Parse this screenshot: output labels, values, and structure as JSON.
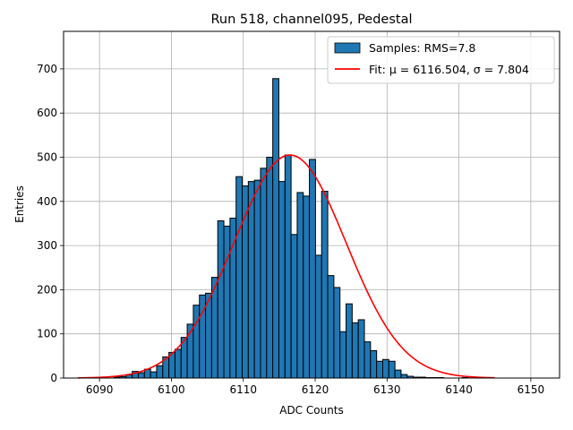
{
  "chart_data": {
    "type": "bar",
    "title": "Run 518, channel095, Pedestal",
    "xlabel": "ADC Counts",
    "ylabel": "Entries",
    "xlim": [
      6085,
      6154
    ],
    "ylim": [
      0,
      785
    ],
    "xticks": [
      6090,
      6100,
      6110,
      6120,
      6130,
      6140,
      6150
    ],
    "yticks": [
      0,
      100,
      200,
      300,
      400,
      500,
      600,
      700
    ],
    "grid": true,
    "legend_position": "top-right",
    "colors": {
      "bars": "#1f77b4",
      "bar_edge": "#000000",
      "fit": "#ff0000",
      "grid": "#b0b0b0"
    },
    "histogram": {
      "name": "Samples: RMS=7.8",
      "bin_width": 0.85,
      "bin_starts": [
        6092.0,
        6092.85,
        6093.7,
        6094.55,
        6095.4,
        6096.25,
        6097.1,
        6097.95,
        6098.8,
        6099.65,
        6100.5,
        6101.35,
        6102.2,
        6103.05,
        6103.9,
        6104.75,
        6105.6,
        6106.45,
        6107.3,
        6108.15,
        6109.0,
        6109.85,
        6110.7,
        6111.55,
        6112.4,
        6113.25,
        6114.1,
        6114.95,
        6115.8,
        6116.65,
        6117.5,
        6118.35,
        6119.2,
        6120.05,
        6120.9,
        6121.75,
        6122.6,
        6123.45,
        6124.3,
        6125.15,
        6126.0,
        6126.85,
        6127.7,
        6128.55,
        6129.4,
        6130.25,
        6131.1,
        6131.95,
        6132.8,
        6133.65,
        6134.5,
        6135.35,
        6136.2,
        6137.05,
        6137.9,
        6138.75,
        6139.6,
        6140.45
      ],
      "counts": [
        2,
        3,
        7,
        15,
        12,
        20,
        14,
        28,
        48,
        58,
        65,
        92,
        122,
        165,
        188,
        192,
        228,
        356,
        344,
        362,
        456,
        435,
        445,
        448,
        475,
        500,
        678,
        445,
        505,
        325,
        420,
        412,
        495,
        278,
        423,
        232,
        205,
        105,
        168,
        125,
        132,
        82,
        62,
        38,
        42,
        38,
        18,
        8,
        4,
        2,
        2,
        1,
        1,
        1,
        0,
        0,
        0,
        1
      ]
    },
    "fit": {
      "name": "Fit: μ = 6116.504, σ = 7.804",
      "mu": 6116.504,
      "sigma": 7.804,
      "amplitude": 505,
      "x_range": [
        6087,
        6145
      ]
    }
  }
}
